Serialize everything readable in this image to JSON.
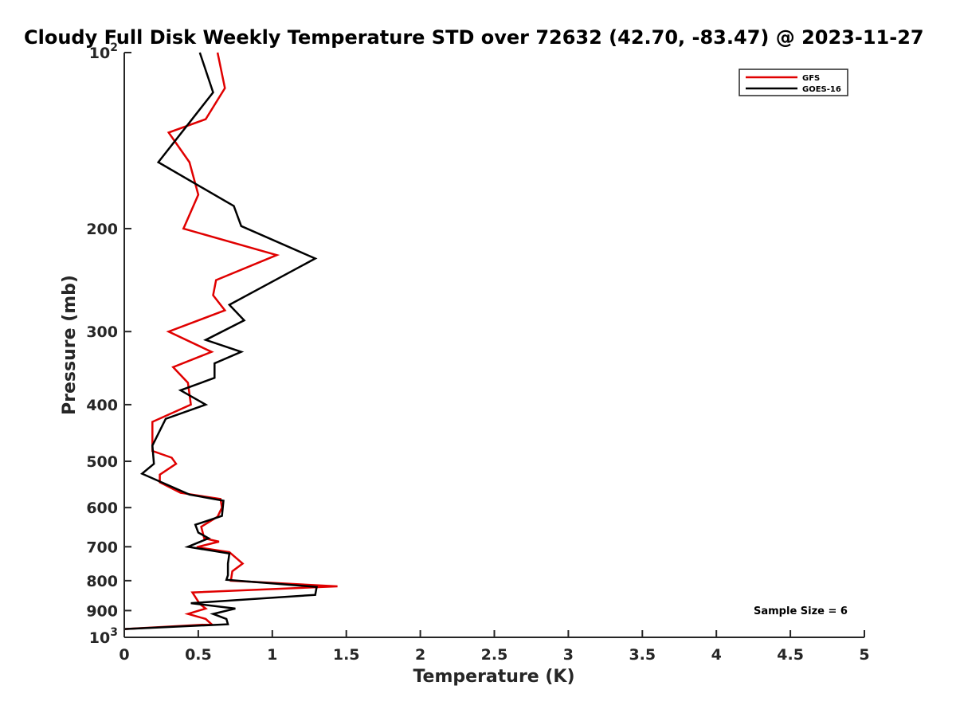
{
  "chart_data": {
    "type": "line",
    "title": "Cloudy Full Disk Weekly Temperature STD over 72632 (42.70, -83.47) @ 2023-11-27",
    "xlabel": "Temperature (K)",
    "ylabel": "Pressure (mb)",
    "xlim": [
      0,
      5
    ],
    "ylim": [
      100,
      1000
    ],
    "y_scale": "log",
    "y_reversed": true,
    "xticks": [
      0,
      0.5,
      1,
      1.5,
      2,
      2.5,
      3,
      3.5,
      4,
      4.5,
      5
    ],
    "xtick_labels": [
      "0",
      "0.5",
      "1",
      "1.5",
      "2",
      "2.5",
      "3",
      "3.5",
      "4",
      "4.5",
      "5"
    ],
    "yticks": [
      100,
      200,
      300,
      400,
      500,
      600,
      700,
      800,
      900,
      1000
    ],
    "ytick_labels": [
      {
        "base": "10",
        "exp": "2"
      },
      {
        "base": "200",
        "exp": ""
      },
      {
        "base": "300",
        "exp": ""
      },
      {
        "base": "400",
        "exp": ""
      },
      {
        "base": "500",
        "exp": ""
      },
      {
        "base": "600",
        "exp": ""
      },
      {
        "base": "700",
        "exp": ""
      },
      {
        "base": "800",
        "exp": ""
      },
      {
        "base": "900",
        "exp": ""
      },
      {
        "base": "10",
        "exp": "3"
      }
    ],
    "grid": false,
    "legend_position": "top-right",
    "annotation": "Sample Size = 6",
    "series": [
      {
        "name": "GFS",
        "color": "#e00000",
        "points": [
          [
            0.63,
            100
          ],
          [
            0.68,
            115
          ],
          [
            0.55,
            130
          ],
          [
            0.3,
            137
          ],
          [
            0.44,
            154
          ],
          [
            0.5,
            175
          ],
          [
            0.4,
            200
          ],
          [
            1.03,
            222
          ],
          [
            0.62,
            245
          ],
          [
            0.6,
            260
          ],
          [
            0.68,
            276
          ],
          [
            0.3,
            300
          ],
          [
            0.59,
            325
          ],
          [
            0.33,
            345
          ],
          [
            0.43,
            367
          ],
          [
            0.45,
            400
          ],
          [
            0.19,
            428
          ],
          [
            0.19,
            480
          ],
          [
            0.32,
            493
          ],
          [
            0.35,
            505
          ],
          [
            0.24,
            527
          ],
          [
            0.24,
            543
          ],
          [
            0.38,
            566
          ],
          [
            0.65,
            580
          ],
          [
            0.66,
            600
          ],
          [
            0.63,
            622
          ],
          [
            0.52,
            647
          ],
          [
            0.54,
            677
          ],
          [
            0.64,
            686
          ],
          [
            0.49,
            701
          ],
          [
            0.71,
            715
          ],
          [
            0.8,
            748
          ],
          [
            0.73,
            771
          ],
          [
            0.72,
            800
          ],
          [
            1.44,
            818
          ],
          [
            0.46,
            838
          ],
          [
            0.51,
            877
          ],
          [
            0.55,
            893
          ],
          [
            0.43,
            912
          ],
          [
            0.55,
            930
          ],
          [
            0.59,
            950
          ],
          [
            0.0,
            968
          ]
        ]
      },
      {
        "name": "GOES-16",
        "color": "#000000",
        "points": [
          [
            0.51,
            100
          ],
          [
            0.6,
            117
          ],
          [
            0.23,
            154
          ],
          [
            0.74,
            183
          ],
          [
            0.79,
            198
          ],
          [
            1.29,
            225
          ],
          [
            0.71,
            270
          ],
          [
            0.81,
            287
          ],
          [
            0.55,
            310
          ],
          [
            0.79,
            325
          ],
          [
            0.61,
            340
          ],
          [
            0.61,
            360
          ],
          [
            0.38,
            378
          ],
          [
            0.55,
            400
          ],
          [
            0.28,
            423
          ],
          [
            0.19,
            470
          ],
          [
            0.2,
            505
          ],
          [
            0.12,
            525
          ],
          [
            0.44,
            570
          ],
          [
            0.67,
            584
          ],
          [
            0.66,
            620
          ],
          [
            0.48,
            642
          ],
          [
            0.5,
            662
          ],
          [
            0.57,
            677
          ],
          [
            0.43,
            700
          ],
          [
            0.71,
            719
          ],
          [
            0.7,
            748
          ],
          [
            0.7,
            783
          ],
          [
            0.69,
            797
          ],
          [
            1.3,
            820
          ],
          [
            1.29,
            846
          ],
          [
            0.45,
            874
          ],
          [
            0.75,
            893
          ],
          [
            0.6,
            912
          ],
          [
            0.69,
            930
          ],
          [
            0.7,
            950
          ],
          [
            0.0,
            968
          ]
        ]
      }
    ]
  }
}
